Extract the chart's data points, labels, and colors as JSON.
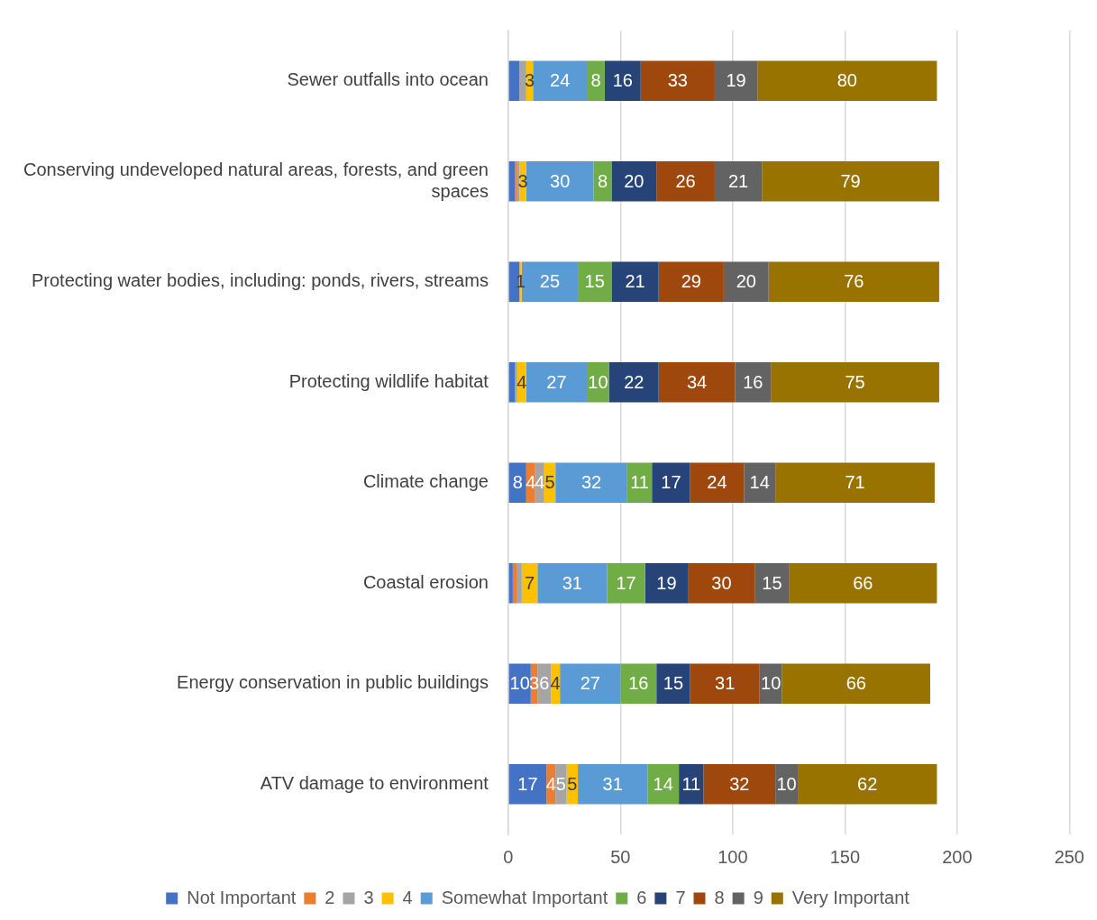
{
  "chart_data": {
    "type": "bar",
    "orientation": "horizontal",
    "stacked": true,
    "data_labels": true,
    "grid": "x",
    "legend": "bottom",
    "categories": [
      "Sewer outfalls into ocean",
      "Conserving undeveloped natural areas, forests, and green spaces",
      "Protecting water bodies, including: ponds, rivers, streams",
      "Protecting wildlife habitat",
      "Climate change",
      "Coastal erosion",
      "Energy conservation in public buildings",
      "ATV damage to environment"
    ],
    "xlim": [
      0,
      250
    ],
    "xticks": [
      0,
      50,
      100,
      150,
      200,
      250
    ],
    "series": [
      {
        "name": "Not Important",
        "color": "#4472c4",
        "values": [
          5,
          3,
          5,
          3,
          8,
          2,
          10,
          17
        ],
        "value_labels": [
          null,
          null,
          null,
          null,
          "8",
          null,
          "10",
          "17"
        ]
      },
      {
        "name": "2",
        "color": "#ed7d31",
        "values": [
          0,
          1,
          0,
          0,
          4,
          2,
          3,
          4
        ],
        "value_labels": [
          null,
          null,
          null,
          null,
          "4",
          null,
          "3",
          "4"
        ]
      },
      {
        "name": "3",
        "color": "#a5a5a5",
        "values": [
          3,
          1,
          0,
          1,
          4,
          2,
          6,
          5
        ],
        "value_labels": [
          null,
          null,
          null,
          null,
          "4",
          null,
          "6",
          "5"
        ]
      },
      {
        "name": "4",
        "color": "#ffc000",
        "values": [
          3,
          3,
          1,
          4,
          5,
          7,
          4,
          5
        ],
        "value_labels": [
          "3",
          "3",
          "1",
          "4",
          "5",
          "7",
          "4",
          "5"
        ]
      },
      {
        "name": "Somewhat Important",
        "color": "#5b9bd5",
        "values": [
          24,
          30,
          25,
          27,
          32,
          31,
          27,
          31
        ]
      },
      {
        "name": "6",
        "color": "#70ad47",
        "values": [
          8,
          8,
          15,
          10,
          11,
          17,
          16,
          14
        ]
      },
      {
        "name": "7",
        "color": "#264478",
        "values": [
          16,
          20,
          21,
          22,
          17,
          19,
          15,
          11
        ]
      },
      {
        "name": "8",
        "color": "#9e480e",
        "values": [
          33,
          26,
          29,
          34,
          24,
          30,
          31,
          32
        ]
      },
      {
        "name": "9",
        "color": "#636363",
        "values": [
          19,
          21,
          20,
          16,
          14,
          15,
          10,
          10
        ]
      },
      {
        "name": "Very Important",
        "color": "#997300",
        "values": [
          80,
          79,
          76,
          75,
          71,
          66,
          66,
          62
        ]
      }
    ]
  }
}
